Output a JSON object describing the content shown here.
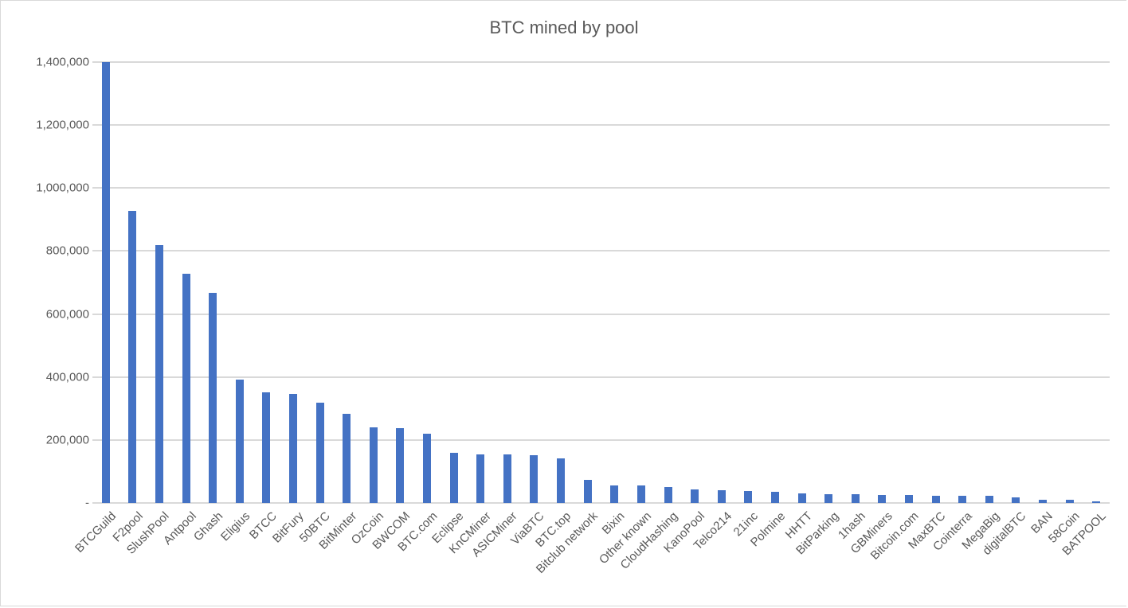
{
  "chart_data": {
    "type": "bar",
    "title": "BTC mined by pool",
    "xlabel": "",
    "ylabel": "",
    "ylim": [
      0,
      1400000
    ],
    "yticks": [
      0,
      200000,
      400000,
      600000,
      800000,
      1000000,
      1200000,
      1400000
    ],
    "ytick_labels": [
      "-",
      "200,000",
      "400,000",
      "600,000",
      "800,000",
      "1,000,000",
      "1,200,000",
      "1,400,000"
    ],
    "grid": true,
    "legend": null,
    "bar_color": "#4472c4",
    "categories": [
      "BTCGuild",
      "F2pool",
      "SlushPool",
      "Antpool",
      "Ghash",
      "Eligius",
      "BTCC",
      "BitFury",
      "50BTC",
      "BitMinter",
      "OzCoin",
      "BWCOM",
      "BTC.com",
      "Eclipse",
      "KnCMiner",
      "ASICMiner",
      "ViaBTC",
      "BTC.top",
      "Bitclub network",
      "Bixin",
      "Other known",
      "CloudHashing",
      "KanoPool",
      "Telco214",
      "21inc",
      "Polmine",
      "HHTT",
      "BitParking",
      "1hash",
      "GBMiners",
      "Bitcoin.com",
      "MaxBTC",
      "Cointerra",
      "MegaBig",
      "digitalBTC",
      "BAN",
      "58Coin",
      "BATPOOL"
    ],
    "values": [
      1400000,
      928000,
      820000,
      728000,
      668000,
      392000,
      352000,
      346000,
      319000,
      283000,
      240000,
      238000,
      220000,
      159000,
      154000,
      154000,
      152000,
      142000,
      73000,
      56000,
      56000,
      51000,
      43000,
      40000,
      38000,
      35000,
      30000,
      28000,
      28000,
      25000,
      25000,
      23000,
      23000,
      23000,
      18000,
      10000,
      10000,
      4000
    ]
  }
}
